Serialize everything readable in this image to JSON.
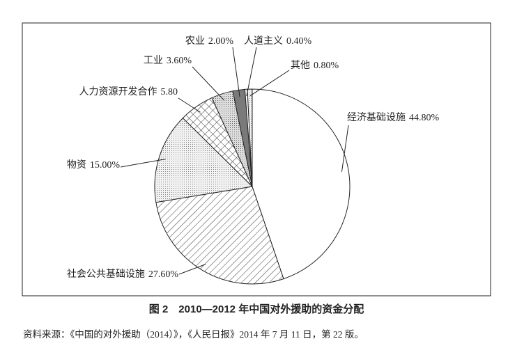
{
  "chart_data": {
    "type": "pie",
    "title": "图 2　2010—2012 年中国对外援助的资金分配",
    "note": "资料来源：《中国的对外援助（2014）》，《人民日报》2014 年 7 月 11 日，第 22 版。",
    "categories": [
      "经济基础设施",
      "社会公共基础设施",
      "物资",
      "人力资源开发合作",
      "工业",
      "农业",
      "人道主义",
      "其他"
    ],
    "values": [
      44.8,
      27.6,
      15,
      5.8,
      3.6,
      2,
      0.4,
      0.8
    ],
    "value_labels": [
      "44.80%",
      "27.60%",
      "15.00%",
      "5.80",
      "3.60%",
      "2.00%",
      "0.40%",
      "0.80%"
    ]
  }
}
